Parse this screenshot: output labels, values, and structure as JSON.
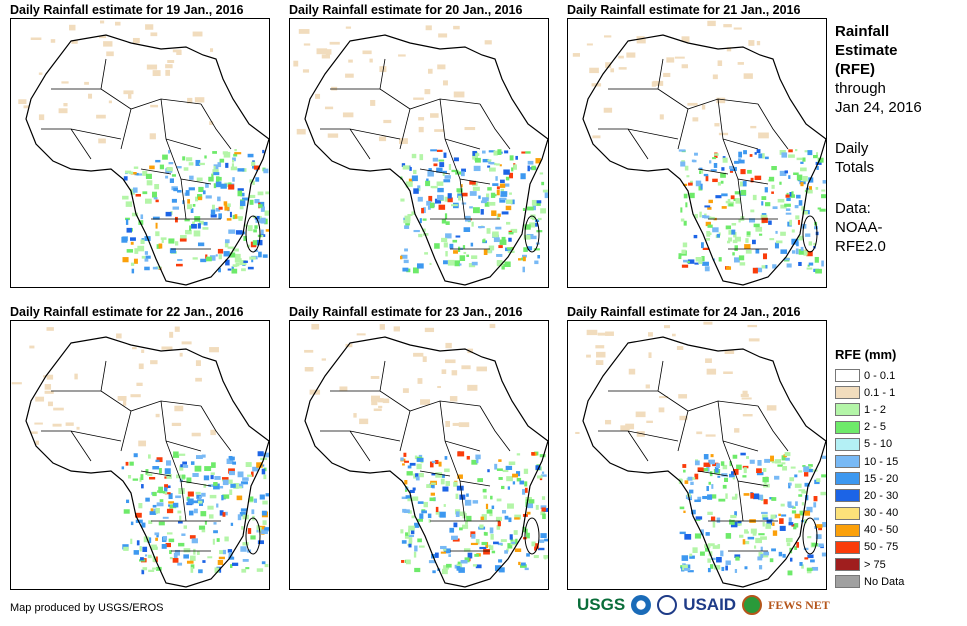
{
  "panels": [
    {
      "title": "Daily Rainfall estimate for 19 Jan., 2016"
    },
    {
      "title": "Daily Rainfall estimate for 20 Jan., 2016"
    },
    {
      "title": "Daily Rainfall estimate for 21 Jan., 2016"
    },
    {
      "title": "Daily Rainfall estimate for 22 Jan., 2016"
    },
    {
      "title": "Daily Rainfall estimate for 23 Jan., 2016"
    },
    {
      "title": "Daily Rainfall estimate for 24 Jan., 2016"
    }
  ],
  "side": {
    "l1": "Rainfall",
    "l2": "Estimate",
    "l3": "(RFE)",
    "l4": "through",
    "l5": "Jan 24, 2016",
    "l6": "Daily",
    "l7": "Totals",
    "l8": "Data:",
    "l9": "NOAA-",
    "l10": "RFE2.0"
  },
  "legend": {
    "title": "RFE (mm)",
    "items": [
      {
        "label": "0 - 0.1",
        "color": "#ffffff"
      },
      {
        "label": "0.1 - 1",
        "color": "#f1dcbd"
      },
      {
        "label": "1 - 2",
        "color": "#b4f5a8"
      },
      {
        "label": "2 - 5",
        "color": "#6eea6a"
      },
      {
        "label": "5 - 10",
        "color": "#b4f0f5"
      },
      {
        "label": "10 - 15",
        "color": "#78b9f5"
      },
      {
        "label": "15 - 20",
        "color": "#3d98f0"
      },
      {
        "label": "20 - 30",
        "color": "#1c64e6"
      },
      {
        "label": "30 - 40",
        "color": "#fce27a"
      },
      {
        "label": "40 - 50",
        "color": "#fba00a"
      },
      {
        "label": "50 - 75",
        "color": "#fa3c0a"
      },
      {
        "label": "> 75",
        "color": "#a01e1e"
      },
      {
        "label": "No Data",
        "color": "#a0a0a0"
      }
    ]
  },
  "credit": "Map produced by USGS/EROS",
  "logos": {
    "usgs": "USGS",
    "usaid": "USAID",
    "fews": "FEWS NET"
  }
}
